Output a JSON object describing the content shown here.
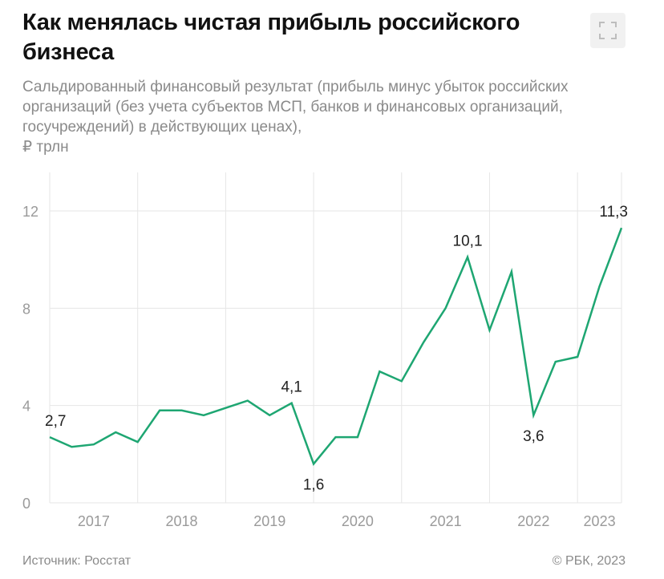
{
  "header": {
    "title": "Как менялась чистая прибыль российского бизнеса",
    "subtitle": "Сальдированный финансовый результат (прибыль минус убыток российских организаций (без учета субъектов МСП, банков и финансовых организаций, госучреждений) в действующих ценах),",
    "unit": "₽ трлн"
  },
  "footer": {
    "source": "Источник: Росстат",
    "copyright": "© РБК, 2023"
  },
  "colors": {
    "line": "#1ea672",
    "grid": "#e6e6e6",
    "axis_text": "#9a9a9a"
  },
  "chart_data": {
    "type": "line",
    "title": "Как менялась чистая прибыль российского бизнеса",
    "ylabel": "₽ трлн",
    "ylim": [
      0,
      13.5
    ],
    "yticks": [
      0,
      4,
      8,
      12
    ],
    "ytick_labels": [
      "0",
      "4",
      "8",
      "12"
    ],
    "xtick_labels": [
      "2017",
      "2018",
      "2019",
      "2020",
      "2021",
      "2022",
      "2023"
    ],
    "x": [
      "I кв. 2017",
      "II кв. 2017",
      "III кв. 2017",
      "IV кв. 2017",
      "I кв. 2018",
      "II кв. 2018",
      "III кв. 2018",
      "IV кв. 2018",
      "I кв. 2019",
      "II кв. 2019",
      "III кв. 2019",
      "IV кв. 2019",
      "I кв. 2020",
      "II кв. 2020",
      "III кв. 2020",
      "IV кв. 2020",
      "I кв. 2021",
      "II кв. 2021",
      "III кв. 2021",
      "IV кв. 2021",
      "I кв. 2022",
      "II кв. 2022",
      "III кв. 2022",
      "IV кв. 2022",
      "I кв. 2023",
      "II кв. 2023",
      "III кв. 2023"
    ],
    "series": [
      {
        "name": "Сальдированный финансовый результат",
        "values": [
          2.7,
          2.3,
          2.4,
          2.9,
          2.5,
          3.8,
          3.8,
          3.6,
          3.9,
          4.2,
          3.6,
          4.1,
          1.6,
          2.7,
          2.7,
          5.4,
          5.0,
          6.6,
          8.0,
          10.1,
          7.1,
          9.5,
          3.6,
          5.8,
          6.0,
          8.9,
          11.3
        ]
      }
    ],
    "annotations": [
      {
        "index": 0,
        "text": "2,7",
        "position": "above"
      },
      {
        "index": 11,
        "text": "4,1",
        "position": "above"
      },
      {
        "index": 12,
        "text": "1,6",
        "position": "below"
      },
      {
        "index": 19,
        "text": "10,1",
        "position": "above"
      },
      {
        "index": 22,
        "text": "3,6",
        "position": "below"
      },
      {
        "index": 26,
        "text": "11,3",
        "position": "above"
      }
    ],
    "grid": true
  }
}
